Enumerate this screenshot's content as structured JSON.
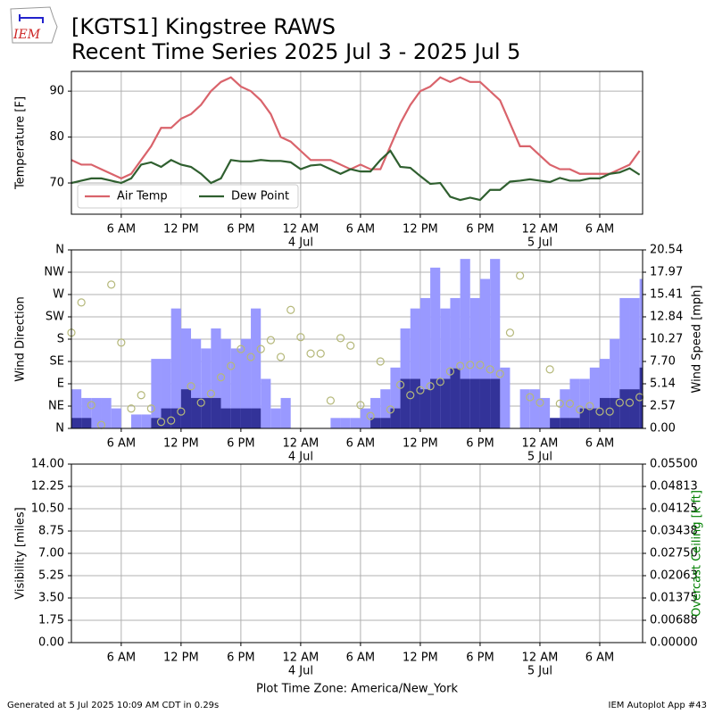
{
  "header": {
    "logo": "IEM",
    "title": "[KGTS1] Kingstree RAWS",
    "subtitle": "Recent Time Series 2025 Jul 3 - 2025 Jul 5"
  },
  "footer": {
    "left": "Generated at 5 Jul 2025 10:09 AM CDT in 0.29s",
    "right": "IEM Autoplot App #43"
  },
  "chart_data": [
    {
      "type": "line",
      "ylabel": "Temperature [F]",
      "x": [
        1,
        2,
        3,
        4,
        5,
        6,
        7,
        8,
        9,
        10,
        11,
        12,
        13,
        14,
        15,
        16,
        17,
        18,
        19,
        20,
        21,
        22,
        23,
        24,
        25,
        26,
        27,
        28,
        29,
        30,
        31,
        32,
        33,
        34,
        35,
        36,
        37,
        38,
        39,
        40,
        41,
        42,
        43,
        44,
        45,
        46,
        47,
        48,
        49,
        50,
        51,
        52,
        53,
        54,
        55,
        56,
        57,
        58
      ],
      "xlim": [
        1,
        58.3
      ],
      "xticks": [
        {
          "value": 6,
          "label": "6 AM"
        },
        {
          "value": 12,
          "label": "12 PM"
        },
        {
          "value": 18,
          "label": "6 PM"
        },
        {
          "value": 24,
          "label": "12 AM"
        },
        {
          "value": 30,
          "label": "6 AM"
        },
        {
          "value": 36,
          "label": "12 PM"
        },
        {
          "value": 42,
          "label": "6 PM"
        },
        {
          "value": 48,
          "label": "12 AM"
        },
        {
          "value": 54,
          "label": "6 AM"
        }
      ],
      "day_labels": [
        {
          "value": 24,
          "label": "4 Jul"
        },
        {
          "value": 48,
          "label": "5 Jul"
        }
      ],
      "ylim": [
        63.2,
        94.3
      ],
      "yticks": [
        70,
        80,
        90
      ],
      "grid": true,
      "legend": "lower left",
      "series": [
        {
          "name": "Air Temp",
          "color": "#d9636b",
          "values": [
            75,
            74,
            74,
            73,
            72,
            71,
            72,
            75,
            78,
            82,
            82,
            84,
            85,
            87,
            90,
            92,
            93,
            91,
            90,
            88,
            85,
            80,
            79,
            77,
            75,
            75,
            75,
            74,
            73,
            74,
            73,
            73,
            78,
            83,
            87,
            90,
            91,
            93,
            92,
            93,
            92,
            92,
            90,
            88,
            83,
            78,
            78,
            76,
            74,
            73,
            73,
            72,
            72,
            72,
            72,
            73,
            74,
            77
          ]
        },
        {
          "name": "Dew Point",
          "color": "#2f5f2f",
          "values": [
            70,
            70.5,
            71,
            71,
            70.5,
            70,
            71,
            74,
            74.5,
            73.5,
            75,
            74,
            73.5,
            72,
            70,
            71,
            75,
            74.7,
            74.7,
            75,
            74.8,
            74.8,
            74.5,
            73,
            73.8,
            74,
            73,
            72,
            73,
            72.5,
            72.5,
            75,
            77,
            73.5,
            73.3,
            71.5,
            69.8,
            70,
            67,
            66.3,
            66.8,
            66.3,
            68.5,
            68.5,
            70.3,
            70.5,
            70.8,
            70.5,
            70.2,
            71.1,
            70.5,
            70.5,
            71,
            71,
            72,
            72.3,
            73.2,
            71.8
          ]
        }
      ]
    },
    {
      "type": "bar",
      "ylabel": "Wind Direction",
      "y2label": "Wind Speed [mph]",
      "x": [
        1,
        2,
        3,
        4,
        5,
        6,
        7,
        8,
        9,
        10,
        11,
        12,
        13,
        14,
        15,
        16,
        17,
        18,
        19,
        20,
        21,
        22,
        23,
        24,
        25,
        26,
        27,
        28,
        29,
        30,
        31,
        32,
        33,
        34,
        35,
        36,
        37,
        38,
        39,
        40,
        41,
        42,
        43,
        44,
        45,
        46,
        47,
        48,
        49,
        50,
        51,
        52,
        53,
        54,
        55,
        56,
        57,
        58
      ],
      "xlim": [
        1,
        58.3
      ],
      "xticks": [
        {
          "value": 6,
          "label": "6 AM"
        },
        {
          "value": 12,
          "label": "12 PM"
        },
        {
          "value": 18,
          "label": "6 PM"
        },
        {
          "value": 24,
          "label": "12 AM"
        },
        {
          "value": 30,
          "label": "6 AM"
        },
        {
          "value": 36,
          "label": "12 PM"
        },
        {
          "value": 42,
          "label": "6 PM"
        },
        {
          "value": 48,
          "label": "12 AM"
        },
        {
          "value": 54,
          "label": "6 AM"
        }
      ],
      "day_labels": [
        {
          "value": 24,
          "label": "4 Jul"
        },
        {
          "value": 48,
          "label": "5 Jul"
        }
      ],
      "ylim": [
        0,
        360
      ],
      "yticks": [
        {
          "value": 0,
          "label": "N"
        },
        {
          "value": 45,
          "label": "NE"
        },
        {
          "value": 90,
          "label": "E"
        },
        {
          "value": 135,
          "label": "SE"
        },
        {
          "value": 180,
          "label": "S"
        },
        {
          "value": 225,
          "label": "SW"
        },
        {
          "value": 270,
          "label": "W"
        },
        {
          "value": 315,
          "label": "NW"
        },
        {
          "value": 360,
          "label": "N"
        }
      ],
      "y2lim": [
        0,
        20.54
      ],
      "y2ticks": [
        {
          "value": 0,
          "label": "0.00"
        },
        {
          "value": 2.5675,
          "label": "2.57"
        },
        {
          "value": 5.135,
          "label": "5.14"
        },
        {
          "value": 7.7025,
          "label": "7.70"
        },
        {
          "value": 10.27,
          "label": "10.27"
        },
        {
          "value": 12.8375,
          "label": "12.84"
        },
        {
          "value": 15.405,
          "label": "15.41"
        },
        {
          "value": 17.9725,
          "label": "17.97"
        },
        {
          "value": 20.54,
          "label": "20.54"
        }
      ],
      "grid": true,
      "series": [
        {
          "type": "bar",
          "axis": "y2",
          "color": "#9999ff",
          "values": [
            4.5,
            3.5,
            3.5,
            3.5,
            2.3,
            0,
            1.6,
            1.6,
            8,
            8,
            13.8,
            11.5,
            10.3,
            9.2,
            11.5,
            10.3,
            9.2,
            10.3,
            13.8,
            5.7,
            2.3,
            3.5,
            0,
            0,
            0,
            0,
            1.2,
            1.2,
            1.2,
            2.3,
            3.5,
            4.5,
            7,
            11.5,
            13.8,
            15,
            18.5,
            13.8,
            15,
            19.5,
            15,
            17.2,
            19.5,
            7,
            0,
            4.5,
            4.5,
            3.5,
            1.2,
            4.5,
            5.7,
            5.7,
            7,
            8,
            10.3,
            15,
            15,
            17.2
          ]
        },
        {
          "type": "bar",
          "axis": "y2",
          "color": "#333399",
          "values": [
            1.2,
            1.2,
            0,
            0,
            0,
            0,
            0,
            0,
            1.2,
            2.3,
            2.3,
            4.5,
            3.5,
            3.5,
            3.5,
            2.3,
            2.3,
            2.3,
            2.3,
            0,
            0,
            0,
            0,
            0,
            0,
            0,
            0,
            0,
            0,
            0,
            1.2,
            1.2,
            2.3,
            5.7,
            5.7,
            4.5,
            5.7,
            5.7,
            6.9,
            5.7,
            5.7,
            5.7,
            5.7,
            0,
            0,
            0,
            0,
            0,
            1.2,
            1.2,
            1.2,
            2.3,
            2.3,
            3.5,
            3.5,
            4.5,
            4.5,
            7
          ]
        },
        {
          "type": "scatter",
          "color": "#b5b87a",
          "values": [
            193,
            254,
            47,
            7,
            290,
            173,
            40,
            67,
            40,
            13,
            16,
            34,
            85,
            52,
            70,
            103,
            126,
            160,
            144,
            160,
            178,
            144,
            239,
            184,
            151,
            151,
            56,
            182,
            167,
            47,
            25,
            135,
            38,
            88,
            67,
            77,
            85,
            94,
            115,
            126,
            128,
            128,
            119,
            110,
            193,
            308,
            63,
            52,
            119,
            50,
            50,
            38,
            45,
            34,
            34,
            52,
            52,
            63
          ]
        }
      ]
    },
    {
      "type": "line",
      "ylabel": "Visibility [miles]",
      "y2label": "Overcast Ceiling [k ft]",
      "y2label_color": "#008000",
      "xlabel": "Plot Time Zone: America/New_York",
      "xlim": [
        1,
        58.3
      ],
      "xticks": [
        {
          "value": 6,
          "label": "6 AM"
        },
        {
          "value": 12,
          "label": "12 PM"
        },
        {
          "value": 18,
          "label": "6 PM"
        },
        {
          "value": 24,
          "label": "12 AM"
        },
        {
          "value": 30,
          "label": "6 AM"
        },
        {
          "value": 36,
          "label": "12 PM"
        },
        {
          "value": 42,
          "label": "6 PM"
        },
        {
          "value": 48,
          "label": "12 AM"
        },
        {
          "value": 54,
          "label": "6 AM"
        }
      ],
      "day_labels": [
        {
          "value": 24,
          "label": "4 Jul"
        },
        {
          "value": 48,
          "label": "5 Jul"
        }
      ],
      "ylim": [
        0,
        14
      ],
      "yticks": [
        {
          "value": 0,
          "label": "0.00"
        },
        {
          "value": 1.75,
          "label": "1.75"
        },
        {
          "value": 3.5,
          "label": "3.50"
        },
        {
          "value": 5.25,
          "label": "5.25"
        },
        {
          "value": 7,
          "label": "7.00"
        },
        {
          "value": 8.75,
          "label": "8.75"
        },
        {
          "value": 10.5,
          "label": "10.50"
        },
        {
          "value": 12.25,
          "label": "12.25"
        },
        {
          "value": 14,
          "label": "14.00"
        }
      ],
      "y2lim": [
        0,
        0.055
      ],
      "y2ticks": [
        {
          "value": 0,
          "label": "0.00000"
        },
        {
          "value": 0.006875,
          "label": "0.00688"
        },
        {
          "value": 0.01375,
          "label": "0.01375"
        },
        {
          "value": 0.020625,
          "label": "0.02063"
        },
        {
          "value": 0.0275,
          "label": "0.02750"
        },
        {
          "value": 0.034375,
          "label": "0.03438"
        },
        {
          "value": 0.04125,
          "label": "0.04125"
        },
        {
          "value": 0.048125,
          "label": "0.04813"
        },
        {
          "value": 0.055,
          "label": "0.05500"
        }
      ],
      "grid": true,
      "series": []
    }
  ]
}
